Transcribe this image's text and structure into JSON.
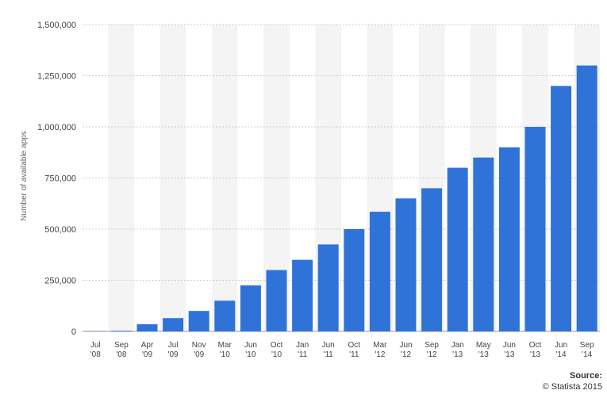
{
  "chart_data": {
    "type": "bar",
    "ylabel": "Number of available apps",
    "xlabel": "",
    "ylim": [
      0,
      1500000
    ],
    "yticks": [
      "0",
      "250,000",
      "500,000",
      "750,000",
      "1,000,000",
      "1,250,000",
      "1,500,000"
    ],
    "categories": [
      [
        "Jul",
        "'08"
      ],
      [
        "Sep",
        "'08"
      ],
      [
        "Apr",
        "'09"
      ],
      [
        "Jul",
        "'09"
      ],
      [
        "Nov",
        "'09"
      ],
      [
        "Mar",
        "'10"
      ],
      [
        "Jun",
        "'10"
      ],
      [
        "Oct",
        "'10"
      ],
      [
        "Jan",
        "'11"
      ],
      [
        "Jun",
        "'11"
      ],
      [
        "Oct",
        "'11"
      ],
      [
        "Mar",
        "'12"
      ],
      [
        "Jun",
        "'12"
      ],
      [
        "Sep",
        "'12"
      ],
      [
        "Jan",
        "'13"
      ],
      [
        "May",
        "'13"
      ],
      [
        "Jun",
        "'13"
      ],
      [
        "Oct",
        "'13"
      ],
      [
        "Jun",
        "'14"
      ],
      [
        "Sep",
        "'14"
      ]
    ],
    "values": [
      800,
      3000,
      35000,
      65000,
      100000,
      150000,
      225000,
      300000,
      350000,
      425000,
      500000,
      585000,
      650000,
      700000,
      800000,
      850000,
      900000,
      1000000,
      1200000,
      1300000
    ],
    "grid": true,
    "bar_color": "#2f73d8",
    "band_color": "#f4f4f4"
  },
  "source": {
    "label": "Source:",
    "credit": "© Statista 2015"
  }
}
